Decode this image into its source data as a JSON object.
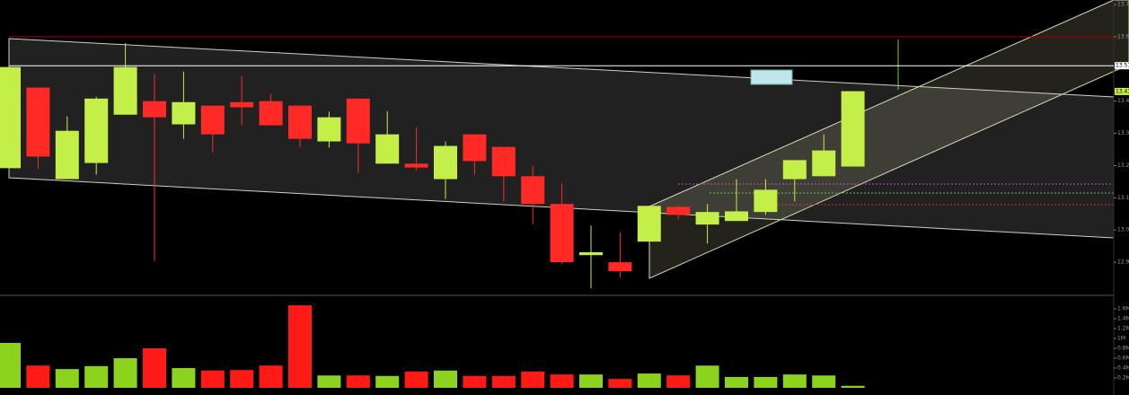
{
  "chart_data": {
    "type": "candlestick",
    "up_color": "#c4ee48",
    "down_color": "#ff2a26",
    "volume_up_color": "#8bd31c",
    "volume_down_color": "#ff1a16",
    "ylim": [
      12.8,
      13.714
    ],
    "yticks": [
      {
        "value": 12.9,
        "label": "12.90"
      },
      {
        "value": 13.0,
        "label": "13.00"
      },
      {
        "value": 13.1,
        "label": "13.10"
      },
      {
        "value": 13.2,
        "label": "13.20"
      },
      {
        "value": 13.3,
        "label": "13.30"
      },
      {
        "value": 13.4,
        "label": "13.40"
      },
      {
        "value": 13.6,
        "label": "13.60"
      },
      {
        "value": 13.7,
        "label": "13.70"
      }
    ],
    "open": [
      13.192,
      13.442,
      13.158,
      13.208,
      13.358,
      13.4,
      13.328,
      13.386,
      13.397,
      13.4,
      13.386,
      13.275,
      13.408,
      13.206,
      13.206,
      13.158,
      13.297,
      13.258,
      13.167,
      13.081,
      12.922,
      12.9,
      12.964,
      13.072,
      13.017,
      13.028,
      13.056,
      13.158,
      13.167,
      13.197
    ],
    "high": [
      13.51,
      13.442,
      13.353,
      13.414,
      13.58,
      13.486,
      13.492,
      13.386,
      13.478,
      13.422,
      13.386,
      13.367,
      13.408,
      13.369,
      13.319,
      13.275,
      13.297,
      13.258,
      13.2,
      13.144,
      13.014,
      12.992,
      13.075,
      13.078,
      13.081,
      13.158,
      13.158,
      13.217,
      13.297,
      13.431
    ],
    "low": [
      13.19,
      13.19,
      13.158,
      13.172,
      13.358,
      12.903,
      13.283,
      13.242,
      13.325,
      13.325,
      13.256,
      13.256,
      13.178,
      13.206,
      13.186,
      13.097,
      13.172,
      13.089,
      13.019,
      12.894,
      12.819,
      12.853,
      12.964,
      13.033,
      12.958,
      13.028,
      13.047,
      13.089,
      13.167,
      13.197
    ],
    "close": [
      13.506,
      13.228,
      13.308,
      13.408,
      13.506,
      13.35,
      13.397,
      13.297,
      13.381,
      13.325,
      13.283,
      13.35,
      13.269,
      13.297,
      13.194,
      13.261,
      13.214,
      13.167,
      13.081,
      12.9,
      12.931,
      12.872,
      13.075,
      13.047,
      13.056,
      13.058,
      13.125,
      13.217,
      13.247,
      13.431
    ],
    "volume": [
      0.91,
      0.45,
      0.38,
      0.44,
      0.6,
      0.8,
      0.4,
      0.35,
      0.36,
      0.45,
      1.67,
      0.25,
      0.25,
      0.24,
      0.33,
      0.35,
      0.24,
      0.24,
      0.33,
      0.27,
      0.27,
      0.18,
      0.29,
      0.25,
      0.45,
      0.22,
      0.22,
      0.27,
      0.25,
      0.04
    ],
    "volume_ylim": [
      0,
      1.8
    ],
    "volume_ticks": [
      {
        "value": 0.2,
        "label": "0.2M"
      },
      {
        "value": 0.4,
        "label": "0.4M"
      },
      {
        "value": 0.6,
        "label": "0.6M"
      },
      {
        "value": 0.8,
        "label": "0.8M"
      },
      {
        "value": 1,
        "label": "1M"
      },
      {
        "value": 1.2,
        "label": "1.2M"
      },
      {
        "value": 1.4,
        "label": "1.4M"
      },
      {
        "value": 1.6,
        "label": "1.6M"
      }
    ],
    "hlines": [
      {
        "value": 13.6,
        "color": "#a00000"
      },
      {
        "value": 13.51,
        "color": "#ffffff"
      }
    ],
    "price_labels": [
      {
        "value": 13.51,
        "label": "13.51"
      },
      {
        "value": 13.43,
        "label": "13.43"
      }
    ]
  }
}
